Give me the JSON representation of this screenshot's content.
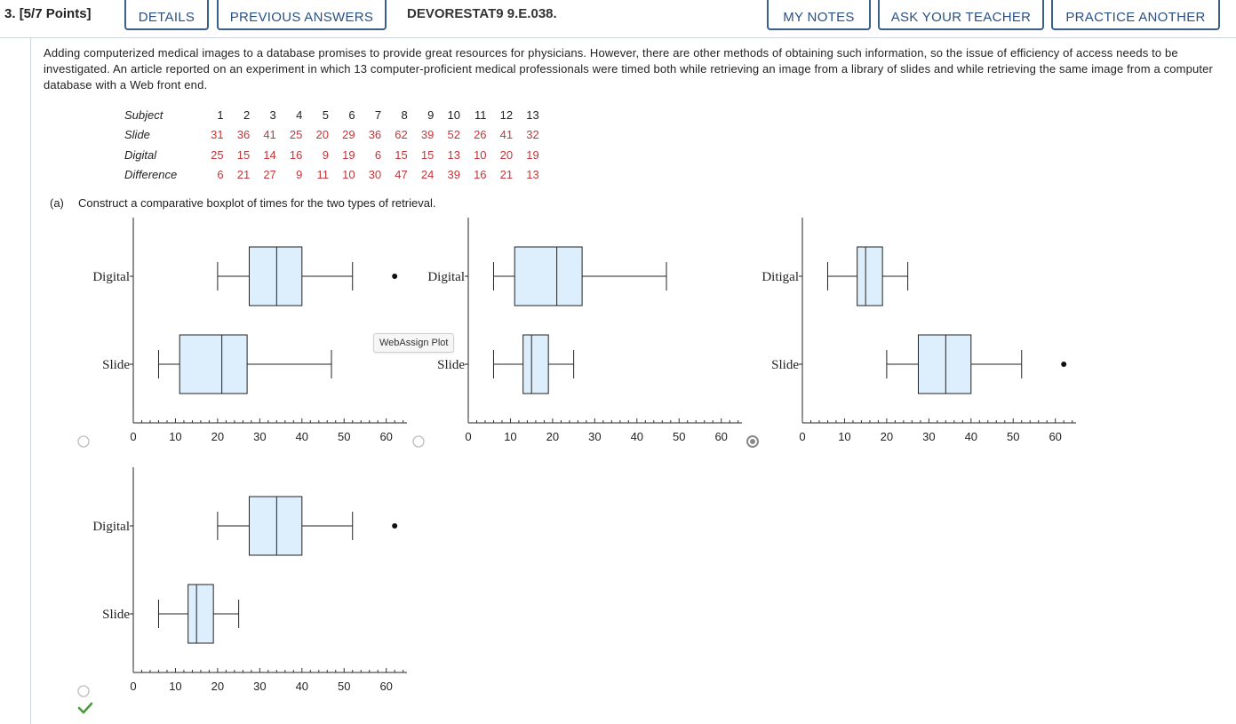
{
  "header": {
    "question_number": "3.",
    "points": "[5/7 Points]",
    "details_label": "DETAILS",
    "previous_answers_label": "PREVIOUS ANSWERS",
    "problem_code": "DEVORESTAT9 9.E.038.",
    "my_notes_label": "MY NOTES",
    "ask_teacher_label": "ASK YOUR TEACHER",
    "practice_label": "PRACTICE ANOTHER"
  },
  "intro_text": "Adding computerized medical images to a database promises to provide great resources for physicians. However, there are other methods of obtaining such information, so the issue of efficiency of access needs to be investigated. An article reported on an experiment in which 13 computer-proficient medical professionals were timed both while retrieving an image from a library of slides and while retrieving the same image from a computer database with a Web front end.",
  "data_table": {
    "rows": [
      {
        "label": "Subject",
        "values": [
          "1",
          "2",
          "3",
          "4",
          "5",
          "6",
          "7",
          "8",
          "9",
          "10",
          "11",
          "12",
          "13"
        ]
      },
      {
        "label": "Slide",
        "values": [
          "31",
          "36",
          "41",
          "25",
          "20",
          "29",
          "36",
          "62",
          "39",
          "52",
          "26",
          "41",
          "32"
        ]
      },
      {
        "label": "Digital",
        "values": [
          "25",
          "15",
          "14",
          "16",
          "9",
          "19",
          "6",
          "15",
          "15",
          "13",
          "10",
          "20",
          "19"
        ]
      },
      {
        "label": "Difference",
        "values": [
          "6",
          "21",
          "27",
          "9",
          "11",
          "10",
          "30",
          "47",
          "24",
          "39",
          "16",
          "21",
          "13"
        ]
      }
    ]
  },
  "part_a": {
    "letter": "(a)",
    "text": "Construct a comparative boxplot of times for the two types of retrieval."
  },
  "tooltip_text": "WebAssign Plot",
  "colors": {
    "box_fill": "#ddeefc",
    "tab_border": "#3a5f88",
    "tab_text": "#2a5080",
    "data_red": "#c4353a",
    "check_green": "#4a9a3c"
  },
  "check_icon": "check-icon",
  "plots": [
    {
      "id": "plot-1",
      "selected": false,
      "axis_ticks": [
        "0",
        "10",
        "20",
        "30",
        "40",
        "50",
        "60"
      ],
      "rows": [
        {
          "label": "Digital",
          "whisker_low": 20,
          "q1": 27.5,
          "median": 34,
          "q3": 40,
          "whisker_high": 52,
          "outliers": [
            62
          ]
        },
        {
          "label": "Slide",
          "whisker_low": 6,
          "q1": 11,
          "median": 21,
          "q3": 27,
          "whisker_high": 47,
          "outliers": []
        }
      ]
    },
    {
      "id": "plot-2",
      "selected": false,
      "axis_ticks": [
        "0",
        "10",
        "20",
        "30",
        "40",
        "50",
        "60"
      ],
      "rows": [
        {
          "label": "Digital",
          "whisker_low": 6,
          "q1": 11,
          "median": 21,
          "q3": 27,
          "whisker_high": 47,
          "outliers": []
        },
        {
          "label": "Slide",
          "whisker_low": 6,
          "q1": 13,
          "median": 15,
          "q3": 19,
          "whisker_high": 25,
          "outliers": []
        }
      ]
    },
    {
      "id": "plot-3",
      "selected": true,
      "axis_ticks": [
        "0",
        "10",
        "20",
        "30",
        "40",
        "50",
        "60"
      ],
      "rows": [
        {
          "label": "Ditigal",
          "whisker_low": 6,
          "q1": 13,
          "median": 15,
          "q3": 19,
          "whisker_high": 25,
          "outliers": []
        },
        {
          "label": "Slide",
          "whisker_low": 20,
          "q1": 27.5,
          "median": 34,
          "q3": 40,
          "whisker_high": 52,
          "outliers": [
            62
          ]
        }
      ]
    },
    {
      "id": "plot-4",
      "selected": false,
      "axis_ticks": [
        "0",
        "10",
        "20",
        "30",
        "40",
        "50",
        "60"
      ],
      "rows": [
        {
          "label": "Digital",
          "whisker_low": 20,
          "q1": 27.5,
          "median": 34,
          "q3": 40,
          "whisker_high": 52,
          "outliers": [
            62
          ]
        },
        {
          "label": "Slide",
          "whisker_low": 6,
          "q1": 13,
          "median": 15,
          "q3": 19,
          "whisker_high": 25,
          "outliers": []
        }
      ]
    }
  ]
}
